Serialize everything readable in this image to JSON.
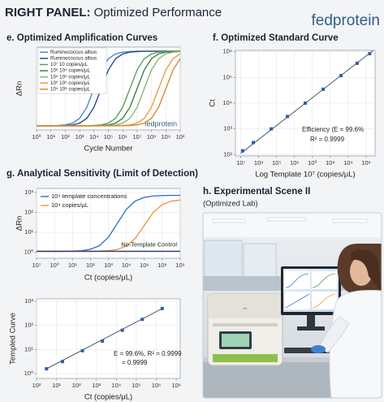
{
  "header": {
    "title_bold": "RIGHT PANEL:",
    "title_rest": "Optimized Performance",
    "logo": "fedprotein"
  },
  "chart_data": [
    {
      "type": "line",
      "title": "e. Optimized Amplification Curves",
      "xlabel": "Cycle Number",
      "ylabel": "ΔRn",
      "watermark": "fedprotein",
      "x": [
        0,
        0.5,
        1,
        1.5,
        2,
        2.5,
        3,
        3.5,
        4,
        4.5,
        5,
        5.5,
        6,
        6.5,
        7,
        7.5,
        8,
        8.5,
        9,
        9.5,
        10
      ],
      "xlim": [
        0,
        10
      ],
      "ylim": [
        0,
        100
      ],
      "xticks": [
        {
          "value": 0,
          "label": "10⁰"
        },
        {
          "value": 1,
          "label": "10¹"
        },
        {
          "value": 2,
          "label": "10²"
        },
        {
          "value": 3,
          "label": "10³"
        },
        {
          "value": 4,
          "label": "10⁴"
        },
        {
          "value": 5,
          "label": "10⁵"
        },
        {
          "value": 6,
          "label": "10⁶"
        },
        {
          "value": 7,
          "label": "10⁷"
        },
        {
          "value": 8,
          "label": "10⁸"
        },
        {
          "value": 9,
          "label": "10⁹"
        },
        {
          "value": 10,
          "label": "10²"
        }
      ],
      "grid": true,
      "legend": "upper left",
      "series": [
        {
          "name": "Ruminococcus albus",
          "color": "#4a86d8",
          "values": [
            5,
            5,
            5.1,
            5.4,
            6.1,
            8.2,
            14,
            27.5,
            50,
            72.5,
            86,
            91.8,
            93.9,
            94.6,
            95,
            95,
            95,
            95,
            95,
            95,
            95
          ]
        },
        {
          "name": "Ruminococcus albus",
          "color": "#2d4a86",
          "values": [
            5,
            5,
            5,
            5.1,
            5.4,
            6.1,
            8.2,
            14,
            27.5,
            50,
            72.5,
            86,
            91.8,
            93.9,
            94.6,
            95,
            95,
            95,
            95,
            95,
            95
          ]
        },
        {
          "name": "10⁷ 10 copies/μL",
          "color": "#5aa05a",
          "values": [
            5,
            5,
            5,
            5,
            5,
            5,
            5,
            5.1,
            5.4,
            6.1,
            8.2,
            14,
            27.5,
            50,
            72.5,
            86,
            91.8,
            93.9,
            94.6,
            95,
            95
          ]
        },
        {
          "name": "10⁶ 10⁴ copies/μL",
          "color": "#3f7f4f",
          "values": [
            5,
            5,
            5,
            5,
            5,
            5,
            5,
            5,
            5.1,
            5.4,
            6.1,
            8.2,
            14,
            27.5,
            50,
            72.5,
            86,
            91.8,
            93.9,
            94.6,
            95
          ]
        },
        {
          "name": "10⁵ 10⁵ copies/μL",
          "color": "#8ab86a",
          "values": [
            5,
            5,
            5,
            5,
            5,
            5,
            5,
            5,
            5,
            5.1,
            5.4,
            6.1,
            8.2,
            14,
            27.5,
            50,
            72.5,
            86,
            91.8,
            93.9,
            94.6
          ]
        },
        {
          "name": "10⁶ 10⁶ copies/μL",
          "color": "#e8a040",
          "values": [
            5,
            5,
            5,
            5,
            5,
            5,
            5,
            5,
            5,
            5,
            5,
            5.1,
            5.4,
            6.1,
            8.2,
            14,
            27.5,
            50,
            72.5,
            86,
            91.8
          ]
        },
        {
          "name": "10⁴ 10⁸ copies/μL",
          "color": "#d98a30",
          "values": [
            5,
            5,
            5,
            5,
            5,
            5,
            5,
            5,
            5,
            5,
            5,
            5,
            5.1,
            5.4,
            6.1,
            8.2,
            14,
            27.5,
            50,
            72.5,
            86
          ]
        }
      ]
    },
    {
      "type": "scatter",
      "title": "f. Optimized Standard Curve",
      "xlabel": "Log Template 10⁷ (copies/μL)",
      "ylabel": "Ct",
      "x": [
        0.1,
        0.7,
        1.7,
        2.6,
        3.6,
        4.6,
        5.6,
        6.5,
        7.2
      ],
      "values": [
        2.15,
        2.47,
        3.0,
        3.48,
        4.0,
        4.54,
        5.07,
        5.55,
        5.92
      ],
      "color": "#2e5fa8",
      "fit": {
        "x": [
          0,
          7.4
        ],
        "y": [
          2.05,
          6.05
        ]
      },
      "xlim": [
        -0.3,
        7.5
      ],
      "ylim": [
        1.95,
        6.05
      ],
      "xticks": [
        {
          "value": 0,
          "label": "10⁷"
        },
        {
          "value": 1,
          "label": "10⁸"
        },
        {
          "value": 2,
          "label": "10⁵"
        },
        {
          "value": 3,
          "label": "10⁶"
        },
        {
          "value": 4,
          "label": "10⁰"
        },
        {
          "value": 5,
          "label": "10⁸"
        },
        {
          "value": 6,
          "label": "10⁹"
        },
        {
          "value": 7,
          "label": "10⁸"
        }
      ],
      "yticks": [
        {
          "value": 2,
          "label": "10²"
        },
        {
          "value": 3,
          "label": "10³"
        },
        {
          "value": 4,
          "label": "10⁴"
        },
        {
          "value": 5,
          "label": "10⁵"
        },
        {
          "value": 6,
          "label": "10⁹"
        }
      ],
      "grid": true,
      "annotations": [
        "Efficiency (E = 99.6%",
        "R² = 0.9999"
      ]
    },
    {
      "type": "line",
      "title": "g. Analytical Sensitivity (Limit of Detection)",
      "xlabel": "Ct (copies/μL)",
      "ylabel": "ΔRn",
      "x": [
        0,
        0.5,
        1,
        1.5,
        2,
        2.5,
        3,
        3.5,
        4,
        4.5,
        5,
        5.5,
        6,
        6.5,
        7,
        7.5,
        8
      ],
      "xlim": [
        0,
        8
      ],
      "ylim": [
        -0.3,
        3.2
      ],
      "xticks": [
        {
          "value": 0,
          "label": "10⁷"
        },
        {
          "value": 1,
          "label": "10⁰"
        },
        {
          "value": 2,
          "label": "10¹"
        },
        {
          "value": 3,
          "label": "10²"
        },
        {
          "value": 4,
          "label": "10³"
        },
        {
          "value": 5,
          "label": "10⁴"
        },
        {
          "value": 6,
          "label": "10⁶"
        },
        {
          "value": 7,
          "label": "10⁸"
        },
        {
          "value": 8,
          "label": "10⁶"
        }
      ],
      "yticks": [
        {
          "value": 0,
          "label": "10⁰"
        },
        {
          "value": 1,
          "label": "10¹"
        },
        {
          "value": 2,
          "label": "10²"
        },
        {
          "value": 3,
          "label": "10³"
        }
      ],
      "grid": true,
      "legend": "upper left",
      "series": [
        {
          "name": "10⁴ template concentrations",
          "color": "#3f73c8",
          "values": [
            0.05,
            0.05,
            0.05,
            0.05,
            0.06,
            0.08,
            0.15,
            0.33,
            0.75,
            1.45,
            2.15,
            2.57,
            2.75,
            2.82,
            2.84,
            2.85,
            2.85
          ]
        },
        {
          "name": "10⁹ copies/μL",
          "color": "#ec9b45",
          "values": [
            0.05,
            0.05,
            0.05,
            0.05,
            0.05,
            0.05,
            0.05,
            0.06,
            0.08,
            0.14,
            0.31,
            0.7,
            1.35,
            2.0,
            2.39,
            2.56,
            2.62
          ]
        },
        {
          "name": "No-Template Control",
          "color": "#2c3e70",
          "in_legend": false,
          "values": [
            0.05,
            0.05,
            0.05,
            0.05,
            0.05,
            0.05,
            0.05,
            0.05,
            0.05,
            0.05,
            0.05,
            0.05,
            0.05,
            0.05,
            0.05,
            0.05,
            0.05
          ]
        }
      ]
    },
    {
      "type": "scatter",
      "xlabel": "Ct (copies/μL)",
      "ylabel": "Templed Curve",
      "x": [
        0.5,
        1.3,
        2.3,
        3.3,
        4.3,
        5.3,
        6.3
      ],
      "values": [
        0.2,
        0.5,
        0.95,
        1.35,
        1.8,
        2.25,
        2.7
      ],
      "color": "#2e5fa8",
      "fit": {
        "x": [
          0.5,
          6.3
        ],
        "y": [
          0.2,
          2.7
        ]
      },
      "xlim": [
        0,
        7.2
      ],
      "ylim": [
        -0.2,
        3.1
      ],
      "xticks": [
        {
          "value": 0,
          "label": "10²"
        },
        {
          "value": 1,
          "label": "10¹"
        },
        {
          "value": 2,
          "label": "10²"
        },
        {
          "value": 3,
          "label": "10³"
        },
        {
          "value": 4,
          "label": "10⁴"
        },
        {
          "value": 5,
          "label": "10⁵"
        },
        {
          "value": 6,
          "label": "10⁶"
        },
        {
          "value": 7,
          "label": "10⁸"
        }
      ],
      "yticks": [
        {
          "value": 0,
          "label": "10⁰"
        },
        {
          "value": 1,
          "label": "10¹"
        },
        {
          "value": 2,
          "label": "10²"
        },
        {
          "value": 3,
          "label": "10³"
        }
      ],
      "grid": true,
      "annotations": [
        "E = 99.6%, R² = 0.9999",
        "= 0.9999"
      ]
    }
  ],
  "scene": {
    "title": "h. Experimental Scene II",
    "subtitle": "(Optimized Lab)"
  }
}
